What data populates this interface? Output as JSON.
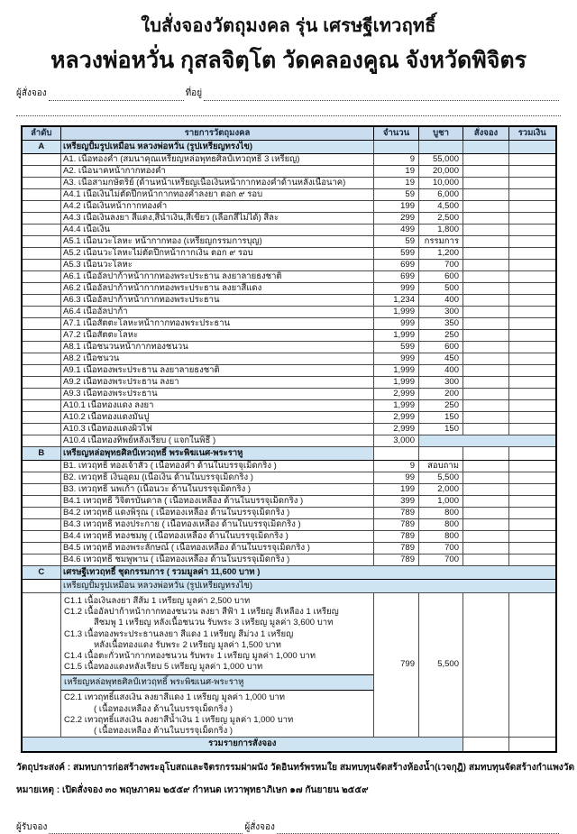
{
  "title_line1": "ใบสั่งจองวัตถุมงคล รุ่น เศรษฐีเทวฤทธิ์",
  "title_line2": "หลวงพ่อหวั่น กุสลจิตฺโต วัดคลองคูณ จังหวัดพิจิตร",
  "orderer_label": "ผู้สั่งจอง",
  "address_label": "ที่อยู่",
  "colors": {
    "band_blue": "#cfe4f2",
    "header_blue": "#c9ddee"
  },
  "table": {
    "headers": [
      "ลำดับ",
      "รายการวัตถุมงคล",
      "จำนวน",
      "บูชา",
      "สั่งจอง",
      "รวมเงิน"
    ],
    "rows": [
      {
        "type": "section",
        "no": "A",
        "desc": "เหรียญปั้มรูปเหมือน หลวงพ่อหวั่น (รูปเหรียญทรงไข)",
        "right_fill": true
      },
      {
        "type": "item",
        "gs": true,
        "desc": "A1. เนื้อทองคำ (สมนาคุณเหรียญหล่อพุทธศิลป์เทวฤทธิ์  3 เหรียญ)",
        "qty": "9",
        "price": "55,000"
      },
      {
        "type": "item",
        "gs": true,
        "desc": "A2. เนื้อนาคหน้ากากทองคำ",
        "qty": "19",
        "price": "20,000"
      },
      {
        "type": "item",
        "gs": true,
        "desc": "A3. เนื้อสามกษัตริย์ (ด้านหน้าเหรียญเนื้อเงินหน้ากากทองคำด้านหลังเนื้อนาค)",
        "qty": "19",
        "price": "10,000"
      },
      {
        "type": "item",
        "gs": true,
        "desc": "A4.1 เนื้อเงินไม่ตัดปีกหน้ากากทองคำลงยา ตอก ๙ รอบ",
        "qty": "59",
        "price": "6,000"
      },
      {
        "type": "item",
        "desc": "A4.2 เนื้อเงินหน้ากากทองคำ",
        "qty": "199",
        "price": "4,500"
      },
      {
        "type": "item",
        "desc": "A4.3 เนื้อเงินลงยา สีแดง,สีน้ำเงิน,สีเขียว (เลือกสีไม่ได้) สีละ",
        "qty": "299",
        "price": "2,500"
      },
      {
        "type": "item",
        "desc": "A4.4 เนื้อเงิน",
        "qty": "499",
        "price": "1,800"
      },
      {
        "type": "item",
        "gs": true,
        "desc": "A5.1 เนื้อนวะโลหะ หน้ากากทอง (เหรียญกรรมการบุญ)",
        "qty": "59",
        "price": "กรรมการ"
      },
      {
        "type": "item",
        "desc": "A5.2 เนื้อนวะโลหะไม่ตัดปีกหน้ากากเงิน ตอก ๙ รอบ",
        "qty": "599",
        "price": "1,200"
      },
      {
        "type": "item",
        "desc": "A5.3 เนื้อนวะโลหะ",
        "qty": "699",
        "price": "700"
      },
      {
        "type": "item",
        "gs": true,
        "desc": "A6.1 เนื้ออัลปาก้าหน้ากากทองพระประธาน ลงยาลายธงชาติ",
        "qty": "699",
        "price": "600"
      },
      {
        "type": "item",
        "desc": "A6.2 เนื้ออัลปาก้าหน้ากากทองพระประธาน ลงยาสีแดง",
        "qty": "999",
        "price": "500"
      },
      {
        "type": "item",
        "desc": "A6.3 เนื้ออัลปาก้าหน้ากากทองพระประธาน",
        "qty": "1,234",
        "price": "400"
      },
      {
        "type": "item",
        "desc": "A6.4 เนื้ออัลปาก้า",
        "qty": "1,999",
        "price": "300"
      },
      {
        "type": "item",
        "gs": true,
        "desc": "A7.1 เนื้อสัตตะโลหะหน้ากากทองพระประธาน",
        "qty": "999",
        "price": "350"
      },
      {
        "type": "item",
        "desc": "A7.2 เนื้อสัตตะโลหะ",
        "qty": "1,999",
        "price": "250"
      },
      {
        "type": "item",
        "gs": true,
        "desc": "A8.1 เนื้อชนวนหน้ากากทองชนวน",
        "qty": "599",
        "price": "600"
      },
      {
        "type": "item",
        "desc": "A8.2 เนื้อชนวน",
        "qty": "999",
        "price": "450"
      },
      {
        "type": "item",
        "gs": true,
        "desc": "A9.1 เนื้อทองพระประธาน ลงยาลายธงชาติ",
        "qty": "1,999",
        "price": "400"
      },
      {
        "type": "item",
        "desc": "A9.2 เนื้อทองพระประธาน ลงยา",
        "qty": "1,999",
        "price": "300"
      },
      {
        "type": "item",
        "desc": "A9.3 เนื้อทองพระประธาน",
        "qty": "2,999",
        "price": "200"
      },
      {
        "type": "item",
        "gs": true,
        "desc": "A10.1 เนื้อทองแดง ลงยา",
        "qty": "1,999",
        "price": "250"
      },
      {
        "type": "item",
        "desc": "A10.2 เนื้อทองแดงมันปู",
        "qty": "2,999",
        "price": "150"
      },
      {
        "type": "item",
        "desc": "A10.3 เนื้อทองแดงผิวไฟ",
        "qty": "2,999",
        "price": "150"
      },
      {
        "type": "item",
        "desc": "A10.4 เนื้อทองทิพย์หลังเรียบ ( แจกในพิธี )",
        "qty": "3,000",
        "price_merged": true
      },
      {
        "type": "section",
        "no": "B",
        "desc": "เหรียญหล่อพุทธศิลป์เทวฤทธิ์ พระพิฆเนศ-พระราหู",
        "right_fill": false
      },
      {
        "type": "item",
        "gs": true,
        "desc": "B1. เทวฤทธิ์ ทองเจ้าสัว ( เนื้อทองคำ ด้านในบรรจุเม็ดกริ่ง )",
        "qty": "9",
        "price": "สอบถาม"
      },
      {
        "type": "item",
        "gs": true,
        "desc": "B2. เทวฤทธิ์ เงินอุดม (เนื้อเงิน ด้านในบรรจุเม็ดกริ่ง )",
        "qty": "99",
        "price": "5,500"
      },
      {
        "type": "item",
        "gs": true,
        "desc": "B3. เทวฤทธิ์ นพเก้า (เนื้อนวะ ด้านในบรรจุเม็ดกริ่ง )",
        "qty": "199",
        "price": "2,000"
      },
      {
        "type": "item",
        "gs": true,
        "desc": "B4.1 เทวฤทธิ์ วิจิตรบันดาล ( เนื้อทองเหลือง ด้านในบรรจุเม็ดกริ่ง )",
        "qty": "399",
        "price": "1,000"
      },
      {
        "type": "item",
        "desc": "B4.2 เทวฤทธิ์ แดงพิรุณ ( เนื้อทองเหลือง ด้านในบรรจุเม็ดกริ่ง )",
        "qty": "789",
        "price": "800"
      },
      {
        "type": "item",
        "desc": "B4.3 เทวฤทธิ์ ทองประกาย ( เนื้อทองเหลือง ด้านในบรรจุเม็ดกริ่ง )",
        "qty": "789",
        "price": "800"
      },
      {
        "type": "item",
        "desc": "B4.4 เทวฤทธิ์ ทองชมพู ( เนื้อทองเหลือง ด้านในบรรจุเม็ดกริ่ง )",
        "qty": "789",
        "price": "800"
      },
      {
        "type": "item",
        "desc": "B4.5 เทวฤทธิ์ ทองพระลักษณ์ ( เนื้อทองเหลือง ด้านในบรรจุเม็ดกริ่ง )",
        "qty": "789",
        "price": "700"
      },
      {
        "type": "item",
        "desc": "B4.6 เทวฤทธิ์ ชมพูพาน ( เนื้อทองเหลือง ด้านในบรรจุเม็ดกริ่ง )",
        "qty": "789",
        "price": "700"
      },
      {
        "type": "section",
        "no": "C",
        "desc": "เศรษฐีเทวฤทธิ์ ชุดกรรมการ ( รวมมูลค่า 11,600 บาท )",
        "span_all": true
      },
      {
        "type": "subheader",
        "desc": "เหรียญปั้มรูปเหมือน หลวงพ่อหวั่น (รูปเหรียญทรงไข)"
      },
      {
        "type": "cblock",
        "qty": "799",
        "price": "5,500",
        "lines1": [
          {
            "text": "C1.1 เนื้อเงินลงยา สีส้ม 1 เหรียญ มูลค่า 2,500 บาท",
            "indent": false
          },
          {
            "text": "C1.2 เนื้ออัลปาก้าหน้ากากทองชนวน ลงยา สีฟ้า 1 เหรียญ สีเหลือง 1 เหรียญ",
            "indent": false
          },
          {
            "text": "สีชมพู 1 เหรียญ หลังเนื้อชนวน  รับพระ 3 เหรียญ มูลค่า 3,600 บาท",
            "indent": true
          },
          {
            "text": "C1.3 เนื้อทองพระประธานลงยา สีแดง 1 เหรียญ สีม่วง 1 เหรียญ",
            "indent": false
          },
          {
            "text": "หลังเนื้อทองแดง รับพระ 2 เหรียญ มูลค่า 1,500 บาท",
            "indent": true
          },
          {
            "text": "C1.4 เนื้อตะกั่วหน้ากากทองชนวน รับพระ 1 เหรียญ มูลค่า 1,000 บาท",
            "indent": false
          },
          {
            "text": "C1.5 เนื้อทองแดงหลังเรียบ 5 เหรียญ มูลค่า 1,000 บาท",
            "indent": false
          }
        ],
        "inner_header": "เหรียญหล่อพุทธศิลป์เทวฤทธิ์ พระพิฆเนศ-พระราหู",
        "lines2": [
          {
            "text": "C2.1 เทวฤทธิ์แสงเงิน ลงยาสีแดง 1 เหรียญ มูลค่า 1,000 บาท",
            "indent": false
          },
          {
            "text": "( เนื้อทองเหลือง ด้านในบรรจุเม็ดกริ่ง )",
            "indent": true
          },
          {
            "text": "C2.2 เทวฤทธิ์แสงเงิน ลงยาสีน้ำเงิน 1 เหรียญ มูลค่า 1,000 บาท",
            "indent": false
          },
          {
            "text": "( เนื้อทองเหลือง ด้านในบรรจุเม็ดกริ่ง )",
            "indent": true
          }
        ]
      },
      {
        "type": "total",
        "label": "รวมรายการสั่งจอง"
      }
    ]
  },
  "footer_purpose": "วัตถุประสงค์ : สมทบการก่อสร้างพระอุโบสถและจิตรกรรมฝาผนัง วัดอินทร์พรหมใย  สมทบทุนจัดสร้างห้องน้ำ(เวจกุฎิ) สมทบทุนจัดสร้างกำแพงวัด",
  "footer_note": "หมายเหตุ : เปิดสั่งจอง ๓๐ พฤษภาคม ๒๕๕๙  กำหนด เทวาพุทธาภิเษก ๑๗ กันยายน ๒๕๕๙",
  "sign_receiver_label": "ผู้รับจอง",
  "sign_orderer_label": "ผู้สั่งจอง"
}
